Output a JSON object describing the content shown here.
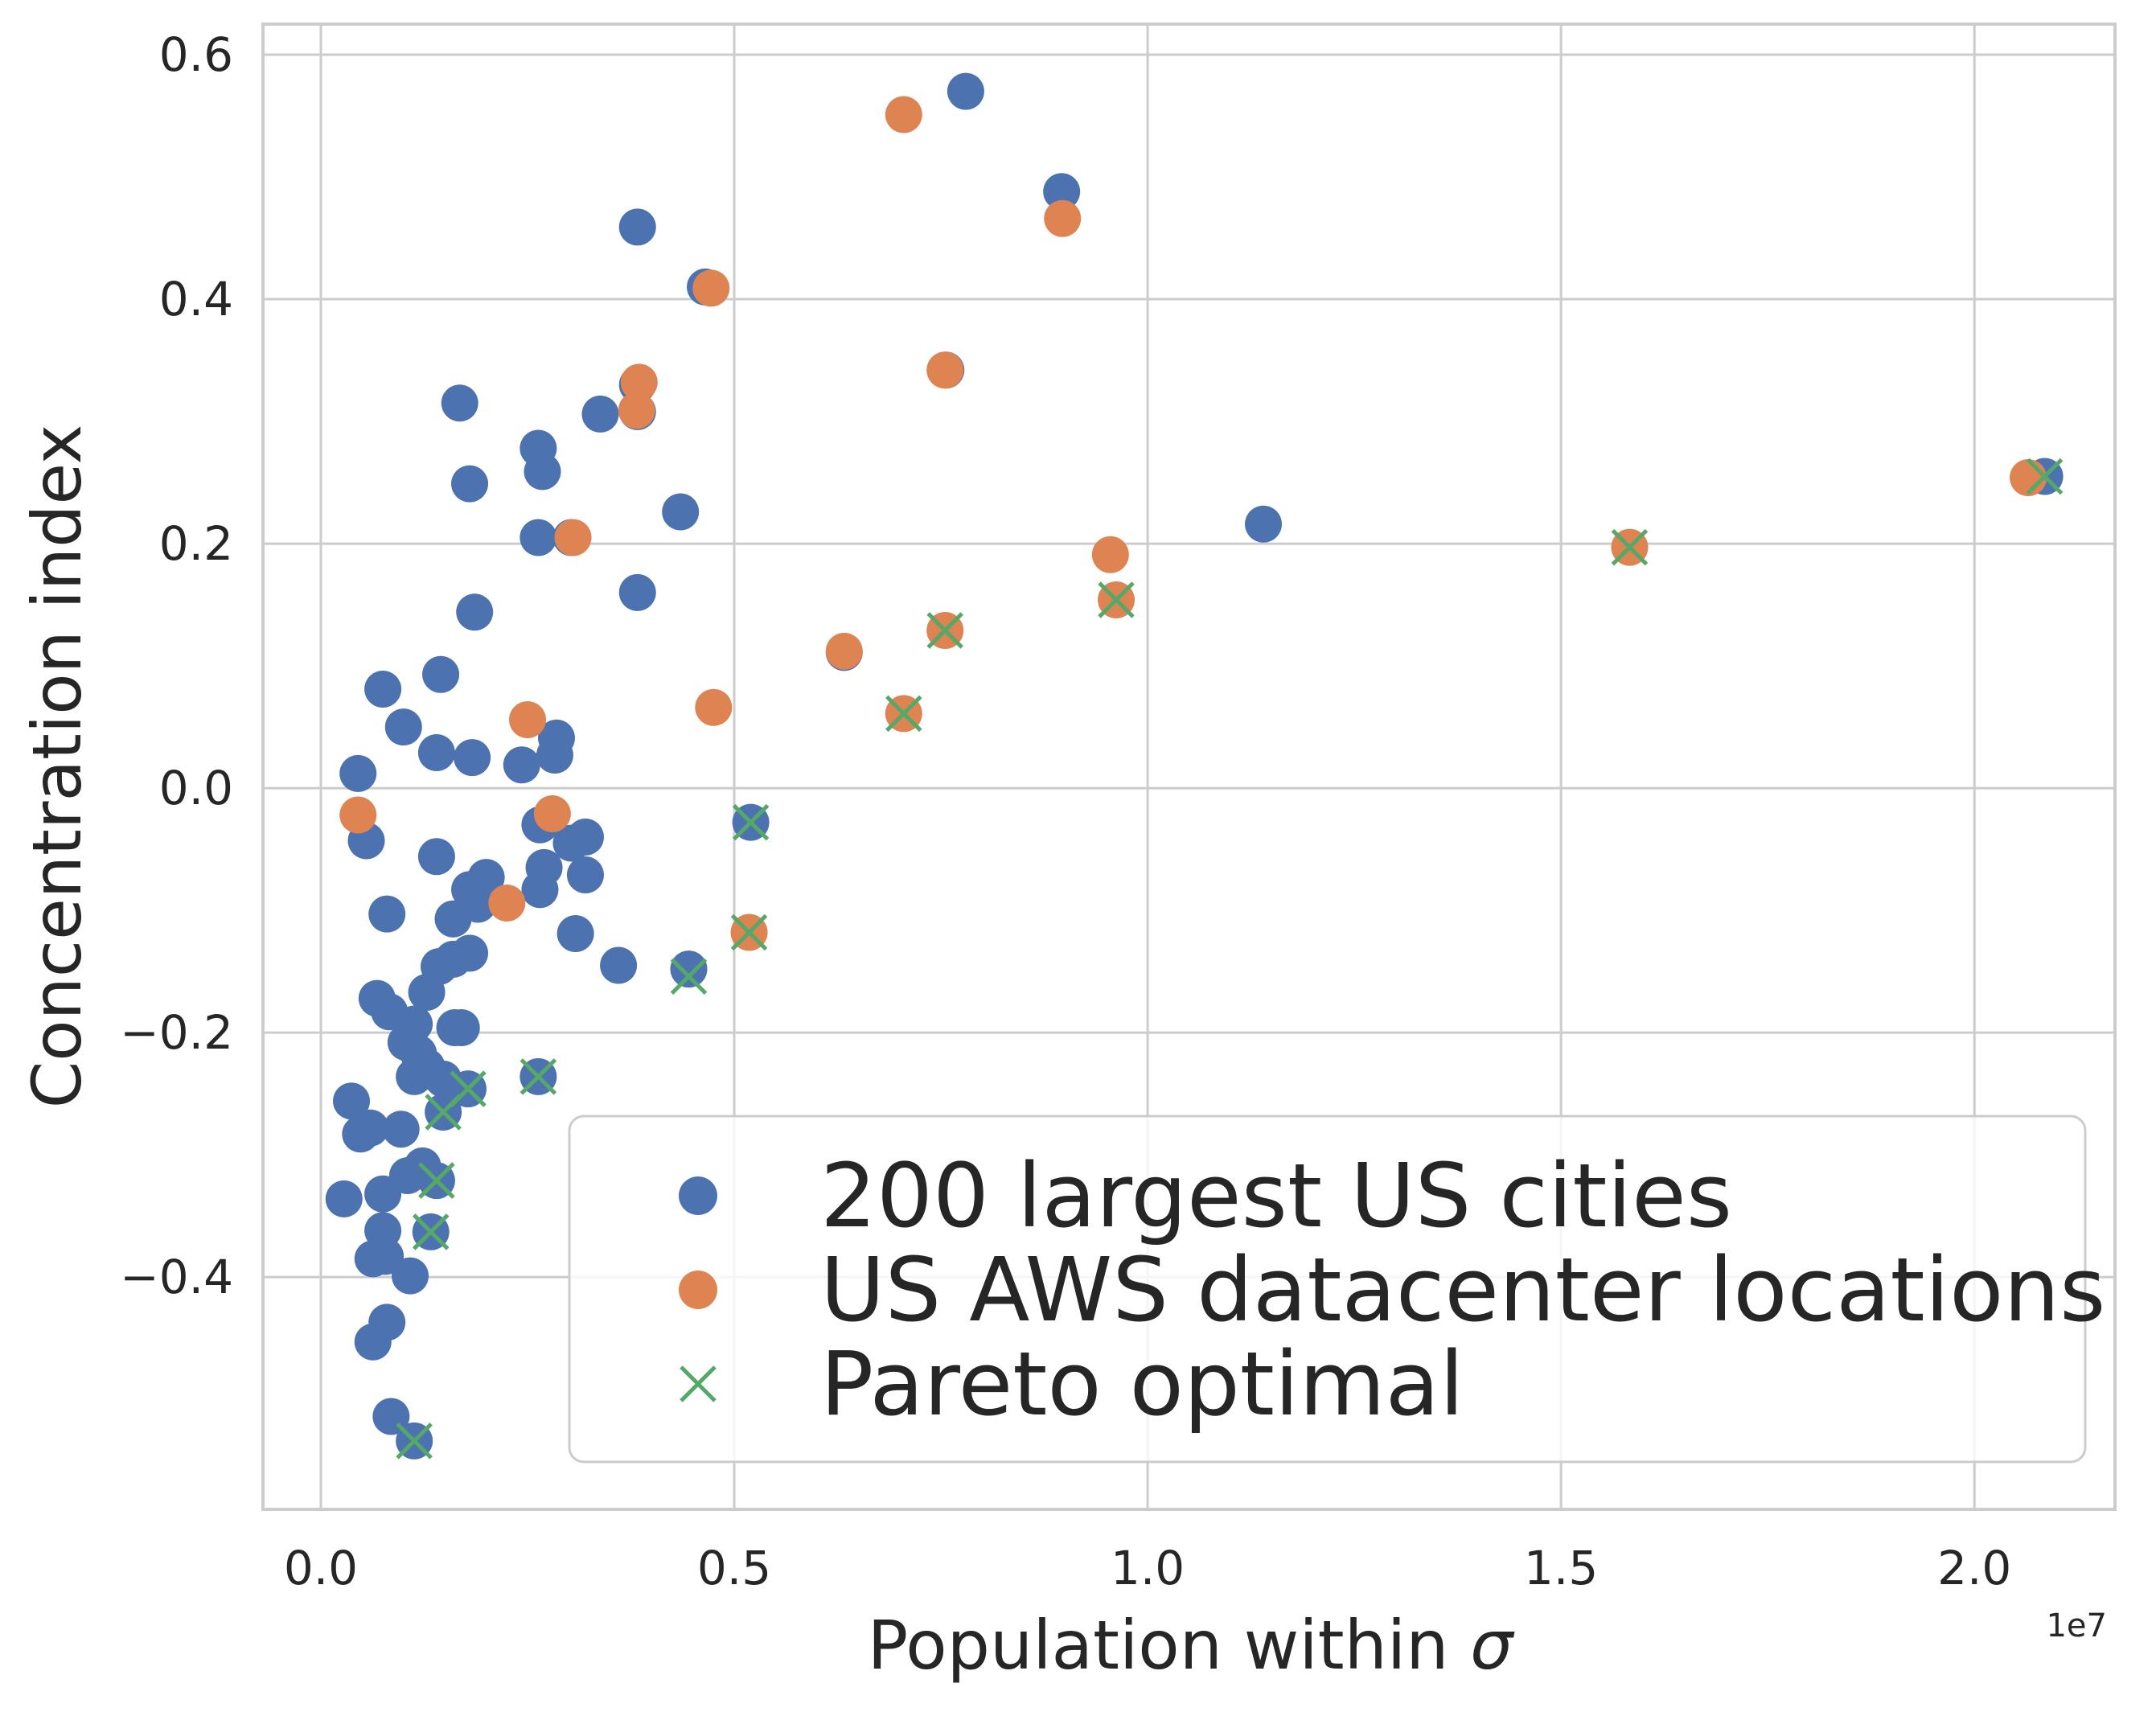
{
  "chart_data": {
    "type": "scatter",
    "title": "",
    "xlabel_main": "Population within ",
    "xlabel_symbol": "σ",
    "ylabel": "Concentration index",
    "x_offset_label": "1e7",
    "xlim": [
      -0.07,
      2.17
    ],
    "ylim": [
      -0.59,
      0.625
    ],
    "x_ticks": [
      0.0,
      0.5,
      1.0,
      1.5,
      2.0
    ],
    "x_tick_labels": [
      "0.0",
      "0.5",
      "1.0",
      "1.5",
      "2.0"
    ],
    "y_ticks": [
      -0.4,
      -0.2,
      0.0,
      0.2,
      0.4,
      0.6
    ],
    "y_tick_labels": [
      "−0.4",
      "−0.2",
      "0.0",
      "0.2",
      "0.4",
      "0.6"
    ],
    "grid": true,
    "legend_position": "lower-right",
    "series": [
      {
        "name": "200 largest US cities",
        "marker": "circle",
        "color": "#4c72b0",
        "points": [
          [
            0.78,
            0.57
          ],
          [
            0.896,
            0.488
          ],
          [
            0.383,
            0.459
          ],
          [
            0.465,
            0.41
          ],
          [
            0.756,
            0.342
          ],
          [
            0.383,
            0.33
          ],
          [
            0.168,
            0.315
          ],
          [
            0.338,
            0.306
          ],
          [
            0.383,
            0.308
          ],
          [
            0.263,
            0.278
          ],
          [
            0.268,
            0.259
          ],
          [
            0.18,
            0.249
          ],
          [
            0.435,
            0.226
          ],
          [
            1.14,
            0.216
          ],
          [
            0.263,
            0.205
          ],
          [
            0.303,
            0.205
          ],
          [
            0.383,
            0.16
          ],
          [
            0.186,
            0.144
          ],
          [
            0.633,
            0.111
          ],
          [
            0.145,
            0.093
          ],
          [
            0.075,
            0.081
          ],
          [
            0.1,
            0.05
          ],
          [
            0.285,
            0.041
          ],
          [
            0.14,
            0.029
          ],
          [
            0.183,
            0.025
          ],
          [
            0.283,
            0.027
          ],
          [
            0.243,
            0.019
          ],
          [
            0.045,
            0.012
          ],
          [
            0.265,
            -0.03
          ],
          [
            0.52,
            -0.028
          ],
          [
            0.055,
            -0.043
          ],
          [
            0.32,
            -0.04
          ],
          [
            0.303,
            -0.045
          ],
          [
            0.14,
            -0.056
          ],
          [
            0.27,
            -0.065
          ],
          [
            0.32,
            -0.071
          ],
          [
            0.2,
            -0.073
          ],
          [
            0.18,
            -0.083
          ],
          [
            0.265,
            -0.083
          ],
          [
            0.19,
            -0.095
          ],
          [
            0.08,
            -0.103
          ],
          [
            0.16,
            -0.107
          ],
          [
            0.308,
            -0.119
          ],
          [
            0.18,
            -0.135
          ],
          [
            0.16,
            -0.14
          ],
          [
            0.143,
            -0.146
          ],
          [
            0.36,
            -0.145
          ],
          [
            0.445,
            -0.148
          ],
          [
            0.128,
            -0.167
          ],
          [
            0.068,
            -0.172
          ],
          [
            0.083,
            -0.183
          ],
          [
            0.113,
            -0.193
          ],
          [
            0.17,
            -0.196
          ],
          [
            0.162,
            -0.196
          ],
          [
            0.103,
            -0.208
          ],
          [
            0.118,
            -0.217
          ],
          [
            0.128,
            -0.228
          ],
          [
            0.148,
            -0.238
          ],
          [
            0.113,
            -0.236
          ],
          [
            0.263,
            -0.236
          ],
          [
            0.178,
            -0.246
          ],
          [
            0.148,
            -0.265
          ],
          [
            0.037,
            -0.256
          ],
          [
            0.06,
            -0.278
          ],
          [
            0.048,
            -0.283
          ],
          [
            0.097,
            -0.279
          ],
          [
            0.123,
            -0.309
          ],
          [
            0.105,
            -0.317
          ],
          [
            0.14,
            -0.321
          ],
          [
            0.075,
            -0.332
          ],
          [
            0.028,
            -0.336
          ],
          [
            0.133,
            -0.363
          ],
          [
            0.075,
            -0.362
          ],
          [
            0.063,
            -0.385
          ],
          [
            0.078,
            -0.383
          ],
          [
            0.108,
            -0.399
          ],
          [
            0.08,
            -0.437
          ],
          [
            0.063,
            -0.453
          ],
          [
            0.085,
            -0.514
          ],
          [
            0.113,
            -0.534
          ],
          [
            2.085,
            0.255
          ]
        ]
      },
      {
        "name": "US AWS datacenter locations",
        "marker": "circle",
        "color": "#dd8452",
        "points": [
          [
            0.705,
            0.551
          ],
          [
            0.897,
            0.466
          ],
          [
            0.472,
            0.409
          ],
          [
            0.755,
            0.342
          ],
          [
            0.385,
            0.332
          ],
          [
            0.382,
            0.309
          ],
          [
            0.305,
            0.205
          ],
          [
            0.955,
            0.191
          ],
          [
            1.583,
            0.197
          ],
          [
            2.065,
            0.254
          ],
          [
            0.633,
            0.112
          ],
          [
            0.755,
            0.129
          ],
          [
            0.962,
            0.154
          ],
          [
            0.705,
            0.061
          ],
          [
            0.475,
            0.066
          ],
          [
            0.25,
            0.056
          ],
          [
            0.045,
            -0.022
          ],
          [
            0.28,
            -0.021
          ],
          [
            0.225,
            -0.094
          ],
          [
            0.518,
            -0.118
          ]
        ]
      },
      {
        "name": "Pareto optimal",
        "marker": "x",
        "color": "#55a868",
        "points": [
          [
            2.085,
            0.255
          ],
          [
            1.583,
            0.197
          ],
          [
            0.962,
            0.154
          ],
          [
            0.755,
            0.129
          ],
          [
            0.705,
            0.061
          ],
          [
            0.52,
            -0.028
          ],
          [
            0.518,
            -0.118
          ],
          [
            0.445,
            -0.154
          ],
          [
            0.263,
            -0.236
          ],
          [
            0.178,
            -0.246
          ],
          [
            0.148,
            -0.265
          ],
          [
            0.14,
            -0.321
          ],
          [
            0.133,
            -0.363
          ],
          [
            0.113,
            -0.534
          ]
        ]
      }
    ]
  }
}
